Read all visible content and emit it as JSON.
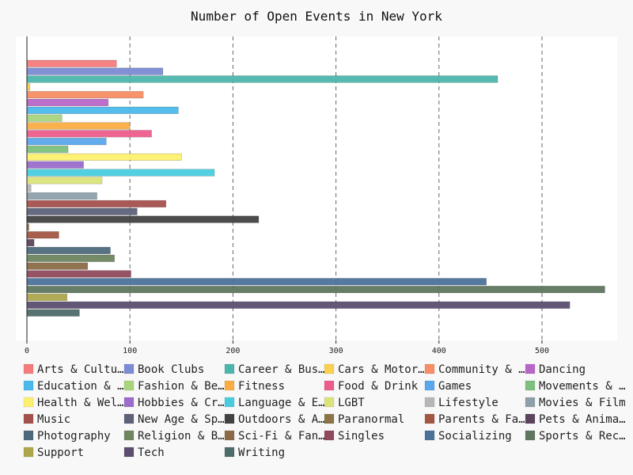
{
  "chart_data": {
    "type": "bar",
    "orientation": "horizontal",
    "title": "Number of Open Events in New York",
    "xlabel": "",
    "ylabel": "",
    "xlim": [
      0,
      570
    ],
    "x_ticks": [
      0,
      100,
      200,
      300,
      400,
      500
    ],
    "grid": "vertical-dashed",
    "legend_position": "bottom",
    "series": [
      {
        "name": "Arts & Culture",
        "legend_label": "Arts & Cultu…",
        "value": 87,
        "color": "#f47c7c"
      },
      {
        "name": "Book Clubs",
        "legend_label": "Book Clubs",
        "value": 132,
        "color": "#7b8bd4"
      },
      {
        "name": "Career & Business",
        "legend_label": "Career & Bus…",
        "value": 457,
        "color": "#4db6ac"
      },
      {
        "name": "Cars & Motorcycles",
        "legend_label": "Cars & Motor…",
        "value": 3,
        "color": "#f9d04f"
      },
      {
        "name": "Community & Environment",
        "legend_label": "Community & …",
        "value": 113,
        "color": "#f78e65"
      },
      {
        "name": "Dancing",
        "legend_label": "Dancing",
        "value": 79,
        "color": "#b866c8"
      },
      {
        "name": "Education & Learning",
        "legend_label": "Education & …",
        "value": 147,
        "color": "#4bb9ea"
      },
      {
        "name": "Fashion & Beauty",
        "legend_label": "Fashion & Be…",
        "value": 34,
        "color": "#a8d47c"
      },
      {
        "name": "Fitness",
        "legend_label": "Fitness",
        "value": 100,
        "color": "#f9ad43"
      },
      {
        "name": "Food & Drink",
        "legend_label": "Food & Drink",
        "value": 121,
        "color": "#ec5d8a"
      },
      {
        "name": "Games",
        "legend_label": "Games",
        "value": 77,
        "color": "#5aa7ec"
      },
      {
        "name": "Movements & Politics",
        "legend_label": "Movements & …",
        "value": 40,
        "color": "#7dc07f"
      },
      {
        "name": "Health & Wellbeing",
        "legend_label": "Health & Wel…",
        "value": 150,
        "color": "#fdf06f"
      },
      {
        "name": "Hobbies & Crafts",
        "legend_label": "Hobbies & Cr…",
        "value": 55,
        "color": "#9b6ccb"
      },
      {
        "name": "Language & Ethnic Identity",
        "legend_label": "Language & E…",
        "value": 182,
        "color": "#48cde0"
      },
      {
        "name": "LGBT",
        "legend_label": "LGBT",
        "value": 73,
        "color": "#dbe47a"
      },
      {
        "name": "Lifestyle",
        "legend_label": "Lifestyle",
        "value": 4,
        "color": "#b7b7b7"
      },
      {
        "name": "Movies & Film",
        "legend_label": "Movies & Film",
        "value": 68,
        "color": "#8da0aa"
      },
      {
        "name": "Music",
        "legend_label": "Music",
        "value": 135,
        "color": "#a4514d"
      },
      {
        "name": "New Age & Spirituality",
        "legend_label": "New Age & Sp…",
        "value": 107,
        "color": "#5e6279"
      },
      {
        "name": "Outdoors & Adventure",
        "legend_label": "Outdoors & A…",
        "value": 225,
        "color": "#424242"
      },
      {
        "name": "Paranormal",
        "legend_label": "Paranormal",
        "value": 2,
        "color": "#8c7447"
      },
      {
        "name": "Parents & Family",
        "legend_label": "Parents & Fa…",
        "value": 31,
        "color": "#a35743"
      },
      {
        "name": "Pets & Animals",
        "legend_label": "Pets & Anima…",
        "value": 7,
        "color": "#5d445e"
      },
      {
        "name": "Photography",
        "legend_label": "Photography",
        "value": 81,
        "color": "#4e6a7c"
      },
      {
        "name": "Religion & Beliefs",
        "legend_label": "Religion & B…",
        "value": 85,
        "color": "#6e8560"
      },
      {
        "name": "Sci-Fi & Fantasy",
        "legend_label": "Sci-Fi & Fan…",
        "value": 59,
        "color": "#8b6b47"
      },
      {
        "name": "Singles",
        "legend_label": "Singles",
        "value": 101,
        "color": "#8f4a5c"
      },
      {
        "name": "Socializing",
        "legend_label": "Socializing",
        "value": 446,
        "color": "#4c729a"
      },
      {
        "name": "Sports & Recreation",
        "legend_label": "Sports & Rec…",
        "value": 561,
        "color": "#5e7660"
      },
      {
        "name": "Support",
        "legend_label": "Support",
        "value": 39,
        "color": "#aea74c"
      },
      {
        "name": "Tech",
        "legend_label": "Tech",
        "value": 527,
        "color": "#5b4e70"
      },
      {
        "name": "Writing",
        "legend_label": "Writing",
        "value": 51,
        "color": "#4d6b6a"
      }
    ]
  }
}
